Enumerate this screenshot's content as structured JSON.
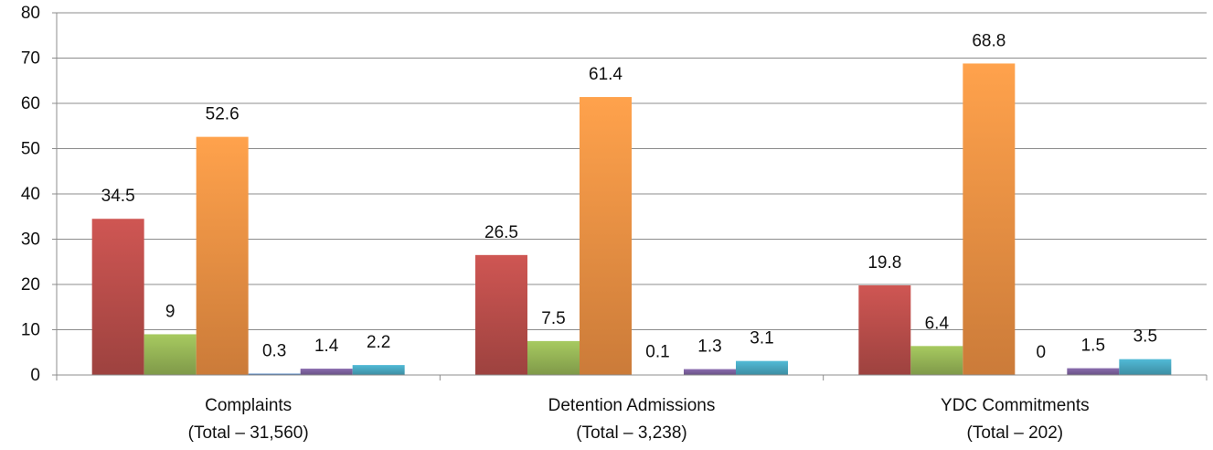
{
  "chart_data": {
    "type": "bar",
    "categories": [
      {
        "line1": "Complaints",
        "line2": "(Total – 31,560)"
      },
      {
        "line1": "Detention Admissions",
        "line2": "(Total – 3,238)"
      },
      {
        "line1": "YDC Commitments",
        "line2": "(Total – 202)"
      }
    ],
    "series": [
      {
        "values": [
          34.5,
          26.5,
          19.8
        ],
        "labels": [
          "34.5",
          "26.5",
          "19.8"
        ],
        "color": "#c0504d"
      },
      {
        "values": [
          9,
          7.5,
          6.4
        ],
        "labels": [
          "9",
          "7.5",
          "6.4"
        ],
        "color": "#9bbb59"
      },
      {
        "values": [
          52.6,
          61.4,
          68.8
        ],
        "labels": [
          "52.6",
          "61.4",
          "68.8"
        ],
        "color": "#f79646"
      },
      {
        "values": [
          0.3,
          0.1,
          0
        ],
        "labels": [
          "0.3",
          "0.1",
          "0"
        ],
        "color": "#4f81bd"
      },
      {
        "values": [
          1.4,
          1.3,
          1.5
        ],
        "labels": [
          "1.4",
          "1.3",
          "1.5"
        ],
        "color": "#8064a2"
      },
      {
        "values": [
          2.2,
          3.1,
          3.5
        ],
        "labels": [
          "2.2",
          "3.1",
          "3.5"
        ],
        "color": "#4bacc6"
      }
    ],
    "yticks": [
      "0",
      "10",
      "20",
      "30",
      "40",
      "50",
      "60",
      "70",
      "80"
    ],
    "ylim": [
      0,
      80
    ],
    "grid": true,
    "legend": "none"
  }
}
